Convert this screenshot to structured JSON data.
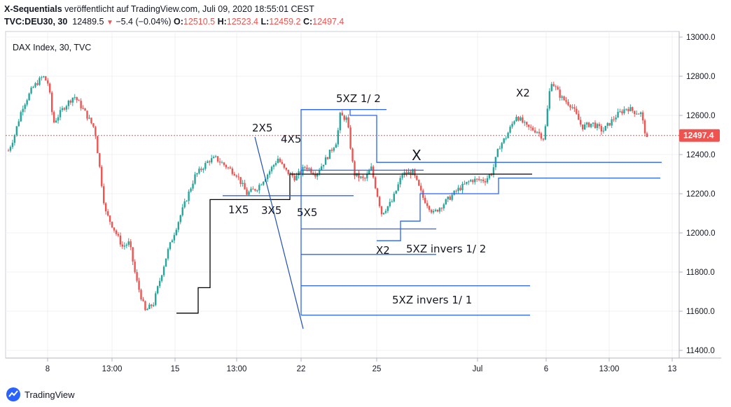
{
  "header": {
    "line1_bold": "X-Sequentials",
    "line1_rest": " veröffentlicht auf TradingView.com, Juli 09, 2020 18:55:01 CEST",
    "symbol": "TVC:DEU30, 30",
    "last": "12489.5",
    "change": "−5.4 (−0.04%)",
    "o_label": "O:",
    "o_val": "12510.5",
    "h_label": "H:",
    "h_val": "12523.4",
    "l_label": "L:",
    "l_val": "12459.2",
    "c_label": "C:",
    "c_val": "12497.4"
  },
  "chart_title": "DAX Index, 30, TVC",
  "brand": "TradingView",
  "colors": {
    "up": "#26a69a",
    "down": "#ef5350",
    "line_blue": "#2962ff",
    "line_black": "#000000",
    "price_tag": "#ef5350"
  },
  "chart_data": {
    "type": "candlestick",
    "title": "DAX Index, 30, TVC",
    "y_ticks": [
      "13000.0",
      "12800.0",
      "12600.0",
      "12400.0",
      "12200.0",
      "12000.0",
      "11800.0",
      "11600.0",
      "11400.0"
    ],
    "ylim": [
      11400,
      13000
    ],
    "x_ticks": [
      "8",
      "13:00",
      "15",
      "13:00",
      "22",
      "25",
      "Jul",
      "6",
      "13:00",
      "13"
    ],
    "last_price": "12497.4",
    "annotations": [
      "2X5",
      "4X5",
      "1X5",
      "3X5",
      "5X5",
      "5XZ 1/ 2",
      "X",
      "X2",
      "X2",
      "5XZ invers 1/ 2",
      "5XZ invers 1/ 1"
    ],
    "price_path": [
      [
        0,
        12420
      ],
      [
        8,
        12490
      ],
      [
        20,
        12640
      ],
      [
        35,
        12740
      ],
      [
        50,
        12800
      ],
      [
        58,
        12760
      ],
      [
        65,
        12560
      ],
      [
        80,
        12640
      ],
      [
        95,
        12700
      ],
      [
        110,
        12620
      ],
      [
        125,
        12530
      ],
      [
        140,
        12110
      ],
      [
        150,
        12040
      ],
      [
        165,
        11930
      ],
      [
        175,
        11950
      ],
      [
        185,
        11760
      ],
      [
        198,
        11600
      ],
      [
        210,
        11640
      ],
      [
        230,
        11900
      ],
      [
        250,
        12100
      ],
      [
        270,
        12290
      ],
      [
        290,
        12370
      ],
      [
        300,
        12380
      ],
      [
        315,
        12340
      ],
      [
        330,
        12300
      ],
      [
        345,
        12200
      ],
      [
        360,
        12230
      ],
      [
        375,
        12300
      ],
      [
        390,
        12380
      ],
      [
        400,
        12320
      ],
      [
        415,
        12280
      ],
      [
        430,
        12340
      ],
      [
        445,
        12300
      ],
      [
        460,
        12380
      ],
      [
        475,
        12470
      ],
      [
        480,
        12600
      ],
      [
        490,
        12580
      ],
      [
        500,
        12300
      ],
      [
        515,
        12270
      ],
      [
        525,
        12330
      ],
      [
        540,
        12100
      ],
      [
        555,
        12160
      ],
      [
        570,
        12300
      ],
      [
        585,
        12310
      ],
      [
        600,
        12180
      ],
      [
        615,
        12100
      ],
      [
        630,
        12150
      ],
      [
        650,
        12220
      ],
      [
        670,
        12270
      ],
      [
        690,
        12270
      ],
      [
        700,
        12310
      ],
      [
        710,
        12440
      ],
      [
        720,
        12490
      ],
      [
        735,
        12600
      ],
      [
        750,
        12540
      ],
      [
        765,
        12520
      ],
      [
        775,
        12480
      ],
      [
        785,
        12780
      ],
      [
        800,
        12690
      ],
      [
        815,
        12650
      ],
      [
        830,
        12540
      ],
      [
        845,
        12560
      ],
      [
        860,
        12520
      ],
      [
        880,
        12600
      ],
      [
        895,
        12640
      ],
      [
        905,
        12620
      ],
      [
        915,
        12610
      ],
      [
        925,
        12460
      ]
    ],
    "levels": {
      "blue_step_top": [
        12640,
        12580,
        12360
      ],
      "blue_step_bottom": [
        11960,
        12060,
        12200,
        12280
      ],
      "black_step": [
        11590,
        11720,
        12170,
        12300
      ],
      "blue_horizontals": [
        12630,
        12320,
        12190,
        12020,
        11890,
        11730,
        11580,
        12360,
        12280
      ],
      "trend_line": [
        12490,
        11510
      ]
    }
  }
}
